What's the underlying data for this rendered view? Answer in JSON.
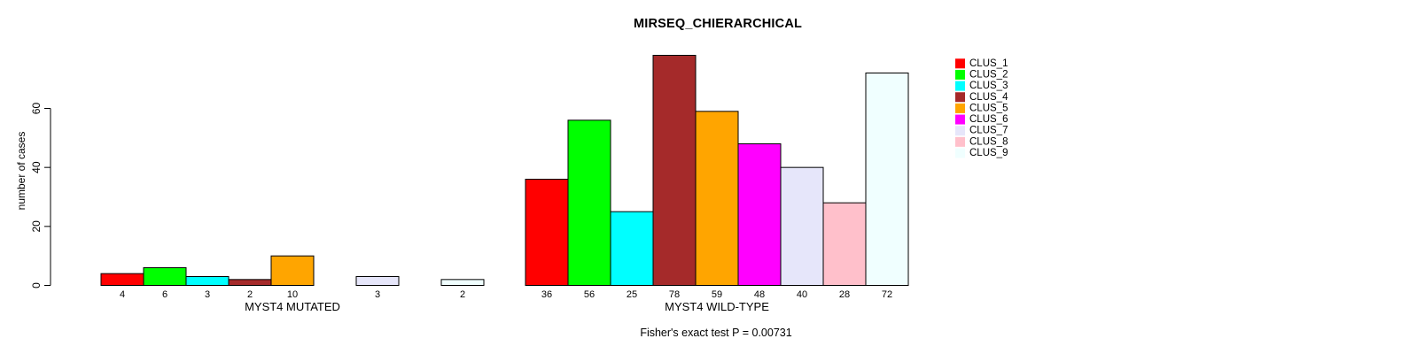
{
  "chart_data": {
    "type": "bar",
    "title": "MIRSEQ_CHIERARCHICAL",
    "ylabel": "number of cases",
    "xlabel": "",
    "ylim": [
      0,
      80
    ],
    "yticks": [
      0,
      20,
      40,
      60
    ],
    "grid": false,
    "legend_position": "right",
    "categories": [
      "CLUS_1",
      "CLUS_2",
      "CLUS_3",
      "CLUS_4",
      "CLUS_5",
      "CLUS_6",
      "CLUS_7",
      "CLUS_8",
      "CLUS_9"
    ],
    "colors": [
      "#FF0000",
      "#00FF00",
      "#00FFFF",
      "#A52A2A",
      "#FFA500",
      "#FF00FF",
      "#E6E6FA",
      "#FFC0CB",
      "#F0FFFF"
    ],
    "bar_border_color": "#000000",
    "groups": [
      {
        "label": "MYST4 MUTATED",
        "values": [
          4,
          6,
          3,
          2,
          10,
          0,
          3,
          0,
          2
        ]
      },
      {
        "label": "MYST4 WILD-TYPE",
        "values": [
          36,
          56,
          25,
          78,
          59,
          48,
          40,
          28,
          72
        ]
      }
    ],
    "zero_bars_hidden": true,
    "annotation": "Fisher's exact test P = 0.00731"
  }
}
